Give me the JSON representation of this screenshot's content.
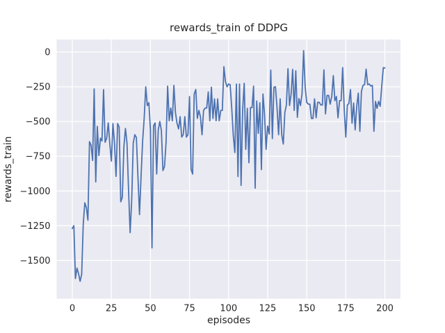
{
  "figure": {
    "background": "#ffffff",
    "axes_background": "#eaeaf2",
    "grid_color": "#ffffff",
    "text_color": "#262626"
  },
  "chart_data": {
    "type": "line",
    "title": "rewards_train of DDPG",
    "xlabel": "episodes",
    "ylabel": "rewards_train",
    "grid": true,
    "legend": null,
    "xlim": [
      -10,
      210
    ],
    "ylim": [
      -1775,
      90
    ],
    "xticks": {
      "values": [
        0,
        25,
        50,
        75,
        100,
        125,
        150,
        175,
        200
      ],
      "labels": [
        "0",
        "25",
        "50",
        "75",
        "100",
        "125",
        "150",
        "175",
        "200"
      ]
    },
    "yticks": {
      "values": [
        0,
        -250,
        -500,
        -750,
        -1000,
        -1250,
        -1500
      ],
      "labels": [
        "0",
        "−250",
        "−500",
        "−750",
        "−1000",
        "−1250",
        "−1500"
      ]
    },
    "series": [
      {
        "name": "rewards_train",
        "color": "#4c72b0",
        "x_start": 0,
        "x_step": 1,
        "values": [
          -1270,
          -1250,
          -1630,
          -1555,
          -1595,
          -1650,
          -1600,
          -1240,
          -1085,
          -1120,
          -1210,
          -645,
          -670,
          -780,
          -265,
          -935,
          -535,
          -745,
          -620,
          -640,
          -270,
          -650,
          -620,
          -510,
          -660,
          -785,
          -515,
          -655,
          -895,
          -515,
          -540,
          -1078,
          -1045,
          -685,
          -550,
          -655,
          -995,
          -1300,
          -1070,
          -655,
          -595,
          -615,
          -895,
          -1170,
          -895,
          -640,
          -475,
          -250,
          -385,
          -365,
          -560,
          -1410,
          -530,
          -510,
          -878,
          -560,
          -500,
          -565,
          -853,
          -825,
          -650,
          -245,
          -495,
          -403,
          -495,
          -240,
          -435,
          -512,
          -553,
          -465,
          -612,
          -595,
          -465,
          -612,
          -595,
          -320,
          -845,
          -878,
          -303,
          -270,
          -478,
          -420,
          -466,
          -595,
          -420,
          -403,
          -403,
          -287,
          -495,
          -253,
          -478,
          -337,
          -495,
          -337,
          -495,
          -420,
          -420,
          -105,
          -212,
          -250,
          -230,
          -235,
          -400,
          -600,
          -723,
          -230,
          -896,
          -230,
          -960,
          -415,
          -225,
          -700,
          -405,
          -797,
          -400,
          -400,
          -245,
          -980,
          -352,
          -585,
          -365,
          -846,
          -302,
          -448,
          -700,
          -533,
          -590,
          -130,
          -623,
          -253,
          -250,
          -400,
          -595,
          -337,
          -595,
          -662,
          -435,
          -380,
          -120,
          -385,
          -305,
          -125,
          -420,
          -135,
          -470,
          -335,
          -385,
          -300,
          10,
          -250,
          -362,
          -375,
          -375,
          -478,
          -478,
          -337,
          -473,
          -362,
          -362,
          -381,
          -381,
          -128,
          -445,
          -312,
          -312,
          -375,
          -320,
          -170,
          -350,
          -320,
          -473,
          -350,
          -350,
          -112,
          -412,
          -612,
          -381,
          -370,
          -270,
          -512,
          -367,
          -560,
          -390,
          -295,
          -570,
          -283,
          -240,
          -235,
          -123,
          -235,
          -230,
          -245,
          -240,
          -570,
          -355,
          -405,
          -355,
          -390,
          -245,
          -112,
          -115
        ]
      }
    ]
  }
}
